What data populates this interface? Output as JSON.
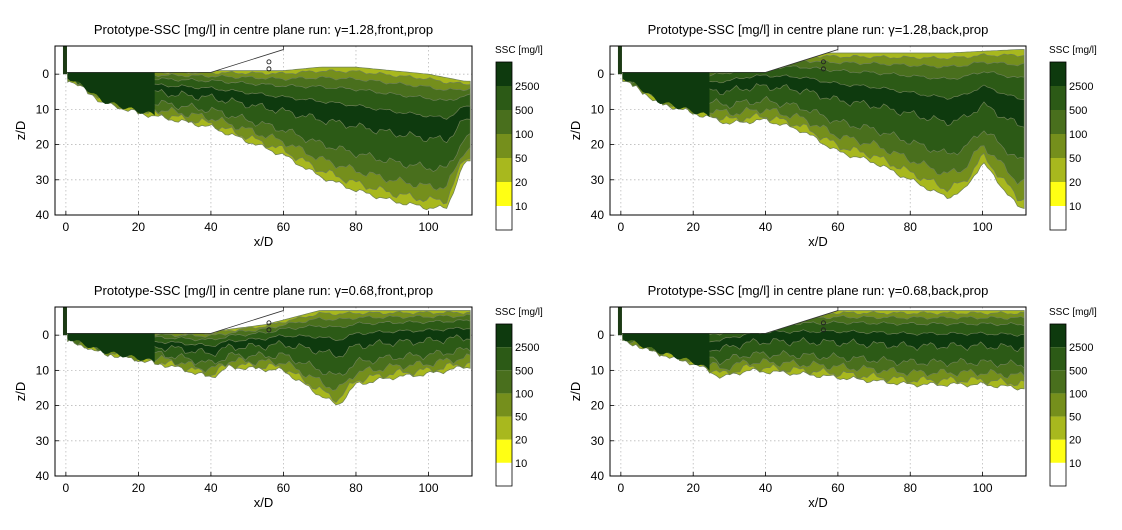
{
  "chart_data": [
    {
      "type": "heatmap",
      "title": "Prototype-SSC [mg/l] in centre plane run: γ=1.28,front,prop",
      "xlabel": "x/D",
      "ylabel": "z/D",
      "xlim": [
        -3,
        112
      ],
      "ylim": [
        -8,
        40
      ],
      "x_ticks": [
        "0",
        "20",
        "40",
        "60",
        "80",
        "100"
      ],
      "y_ticks": [
        "0",
        "10",
        "20",
        "30",
        "40"
      ],
      "grid": "dotted",
      "colorbar_title": "SSC [mg/l]",
      "colorbar_labels": [
        "2500",
        "500",
        "100",
        "50",
        "20",
        "10"
      ],
      "colorbar_colors": [
        "#0e3a0e",
        "#2c5a16",
        "#496f1d",
        "#758f1c",
        "#a8b81e",
        "#ffff14",
        "#ffffff"
      ],
      "plume_bottom": [
        [
          0,
          1
        ],
        [
          5,
          4
        ],
        [
          10,
          8
        ],
        [
          20,
          11
        ],
        [
          30,
          13
        ],
        [
          40,
          15
        ],
        [
          50,
          19
        ],
        [
          60,
          23
        ],
        [
          70,
          29
        ],
        [
          80,
          33
        ],
        [
          90,
          36
        ],
        [
          100,
          38
        ],
        [
          105,
          38
        ],
        [
          110,
          25
        ]
      ],
      "plume_top": [
        [
          0,
          -1
        ],
        [
          20,
          -1
        ],
        [
          40,
          -1
        ],
        [
          60,
          -1
        ],
        [
          70,
          -2
        ],
        [
          80,
          -2
        ],
        [
          90,
          -1
        ],
        [
          100,
          0
        ],
        [
          110,
          2
        ]
      ]
    },
    {
      "type": "heatmap",
      "title": "Prototype-SSC [mg/l] in centre plane run: γ=1.28,back,prop",
      "xlabel": "x/D",
      "ylabel": "z/D",
      "xlim": [
        -3,
        112
      ],
      "ylim": [
        -8,
        40
      ],
      "x_ticks": [
        "0",
        "20",
        "40",
        "60",
        "80",
        "100"
      ],
      "y_ticks": [
        "0",
        "10",
        "20",
        "30",
        "40"
      ],
      "grid": "dotted",
      "colorbar_title": "SSC [mg/l]",
      "colorbar_labels": [
        "2500",
        "500",
        "100",
        "50",
        "20",
        "10"
      ],
      "colorbar_colors": [
        "#0e3a0e",
        "#2c5a16",
        "#496f1d",
        "#758f1c",
        "#a8b81e",
        "#ffff14",
        "#ffffff"
      ],
      "plume_bottom": [
        [
          0,
          1
        ],
        [
          5,
          4
        ],
        [
          10,
          8
        ],
        [
          20,
          11
        ],
        [
          30,
          14
        ],
        [
          40,
          13
        ],
        [
          50,
          16
        ],
        [
          60,
          22
        ],
        [
          70,
          25
        ],
        [
          80,
          30
        ],
        [
          90,
          35
        ],
        [
          95,
          33
        ],
        [
          100,
          25
        ],
        [
          110,
          38
        ]
      ],
      "plume_top": [
        [
          0,
          -1
        ],
        [
          20,
          -1
        ],
        [
          35,
          -5
        ],
        [
          50,
          -6
        ],
        [
          70,
          -6
        ],
        [
          90,
          -6
        ],
        [
          110,
          -7
        ]
      ]
    },
    {
      "type": "heatmap",
      "title": "Prototype-SSC [mg/l] in centre plane run: γ=0.68,front,prop",
      "xlabel": "x/D",
      "ylabel": "z/D",
      "xlim": [
        -3,
        112
      ],
      "ylim": [
        -8,
        40
      ],
      "x_ticks": [
        "0",
        "20",
        "40",
        "60",
        "80",
        "100"
      ],
      "y_ticks": [
        "0",
        "10",
        "20",
        "30",
        "40"
      ],
      "grid": "dotted",
      "colorbar_title": "SSC [mg/l]",
      "colorbar_labels": [
        "2500",
        "500",
        "100",
        "50",
        "20",
        "10"
      ],
      "colorbar_colors": [
        "#0e3a0e",
        "#2c5a16",
        "#496f1d",
        "#758f1c",
        "#a8b81e",
        "#ffff14",
        "#ffffff"
      ],
      "plume_bottom": [
        [
          0,
          1
        ],
        [
          10,
          5
        ],
        [
          20,
          7
        ],
        [
          30,
          9
        ],
        [
          40,
          12
        ],
        [
          45,
          9
        ],
        [
          60,
          10
        ],
        [
          70,
          17
        ],
        [
          75,
          20
        ],
        [
          80,
          14
        ],
        [
          90,
          12
        ],
        [
          100,
          11
        ],
        [
          110,
          9
        ]
      ],
      "plume_top": [
        [
          0,
          -1
        ],
        [
          40,
          -1
        ],
        [
          55,
          -3
        ],
        [
          70,
          -7
        ],
        [
          90,
          -7
        ],
        [
          110,
          -7
        ]
      ]
    },
    {
      "type": "heatmap",
      "title": "Prototype-SSC [mg/l] in centre plane run: γ=0.68,back,prop",
      "xlabel": "x/D",
      "ylabel": "z/D",
      "xlim": [
        -3,
        112
      ],
      "ylim": [
        -8,
        40
      ],
      "x_ticks": [
        "0",
        "20",
        "40",
        "60",
        "80",
        "100"
      ],
      "y_ticks": [
        "0",
        "10",
        "20",
        "30",
        "40"
      ],
      "grid": "dotted",
      "colorbar_title": "SSC [mg/l]",
      "colorbar_labels": [
        "2500",
        "500",
        "100",
        "50",
        "20",
        "10"
      ],
      "colorbar_colors": [
        "#0e3a0e",
        "#2c5a16",
        "#496f1d",
        "#758f1c",
        "#a8b81e",
        "#ffff14",
        "#ffffff"
      ],
      "plume_bottom": [
        [
          0,
          1
        ],
        [
          10,
          5
        ],
        [
          20,
          8
        ],
        [
          28,
          12
        ],
        [
          35,
          10
        ],
        [
          50,
          11
        ],
        [
          60,
          12
        ],
        [
          70,
          13
        ],
        [
          80,
          14
        ],
        [
          90,
          14
        ],
        [
          100,
          14
        ],
        [
          110,
          15
        ]
      ],
      "plume_top": [
        [
          0,
          -1
        ],
        [
          20,
          -1
        ],
        [
          30,
          -4
        ],
        [
          40,
          -6
        ],
        [
          60,
          -7
        ],
        [
          90,
          -7
        ],
        [
          110,
          -7
        ]
      ]
    }
  ]
}
